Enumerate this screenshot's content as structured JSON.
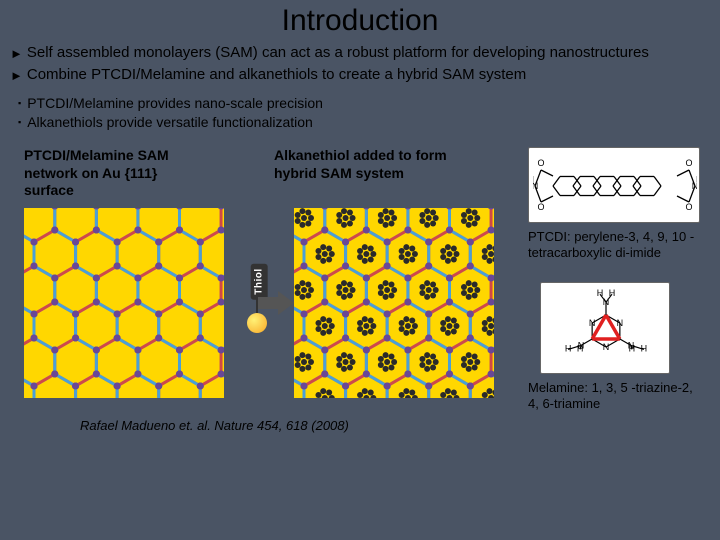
{
  "title": "Introduction",
  "bullets": [
    "Self assembled monolayers (SAM) can act as a robust platform for developing nanostructures",
    "Combine PTCDI/Melamine and alkanethiols to create a hybrid SAM system"
  ],
  "subbullets": [
    "PTCDI/Melamine provides nano-scale precision",
    "Alkanethiols provide versatile functionalization"
  ],
  "captions": {
    "left": "PTCDI/Melamine SAM network on Au {111} surface",
    "right": "Alkanethiol added to form hybrid SAM system"
  },
  "thiol_label": "Thiol",
  "citation": "Rafael Madueno et. al. Nature 454, 618 (2008)",
  "molecules": {
    "ptcdi": {
      "label": "PTCDI:  perylene-3, 4, 9, 10 -tetracarboxylic di-imide"
    },
    "melamine": {
      "label": "Melamine:  1, 3, 5 -triazine-2, 4, 6-triamine"
    }
  },
  "colors": {
    "background": "#4a5464",
    "honeycomb_bg": "#ffd700",
    "hex_line1": "#49a0d8",
    "hex_line2": "#d14848",
    "node_dot": "#6a4896",
    "cluster_dot": "#2a2a2a",
    "arrow_fill": "#555555",
    "thiol_ball": "#f9a825",
    "mel_tri": "#e02020",
    "mol_line": "#000000"
  },
  "honeycomb": {
    "hex_radius": 24,
    "cols": 5,
    "rows": 6,
    "line_width": 3
  },
  "cluster": {
    "dot_radius": 3,
    "ring_radius": 7,
    "count": 7
  }
}
